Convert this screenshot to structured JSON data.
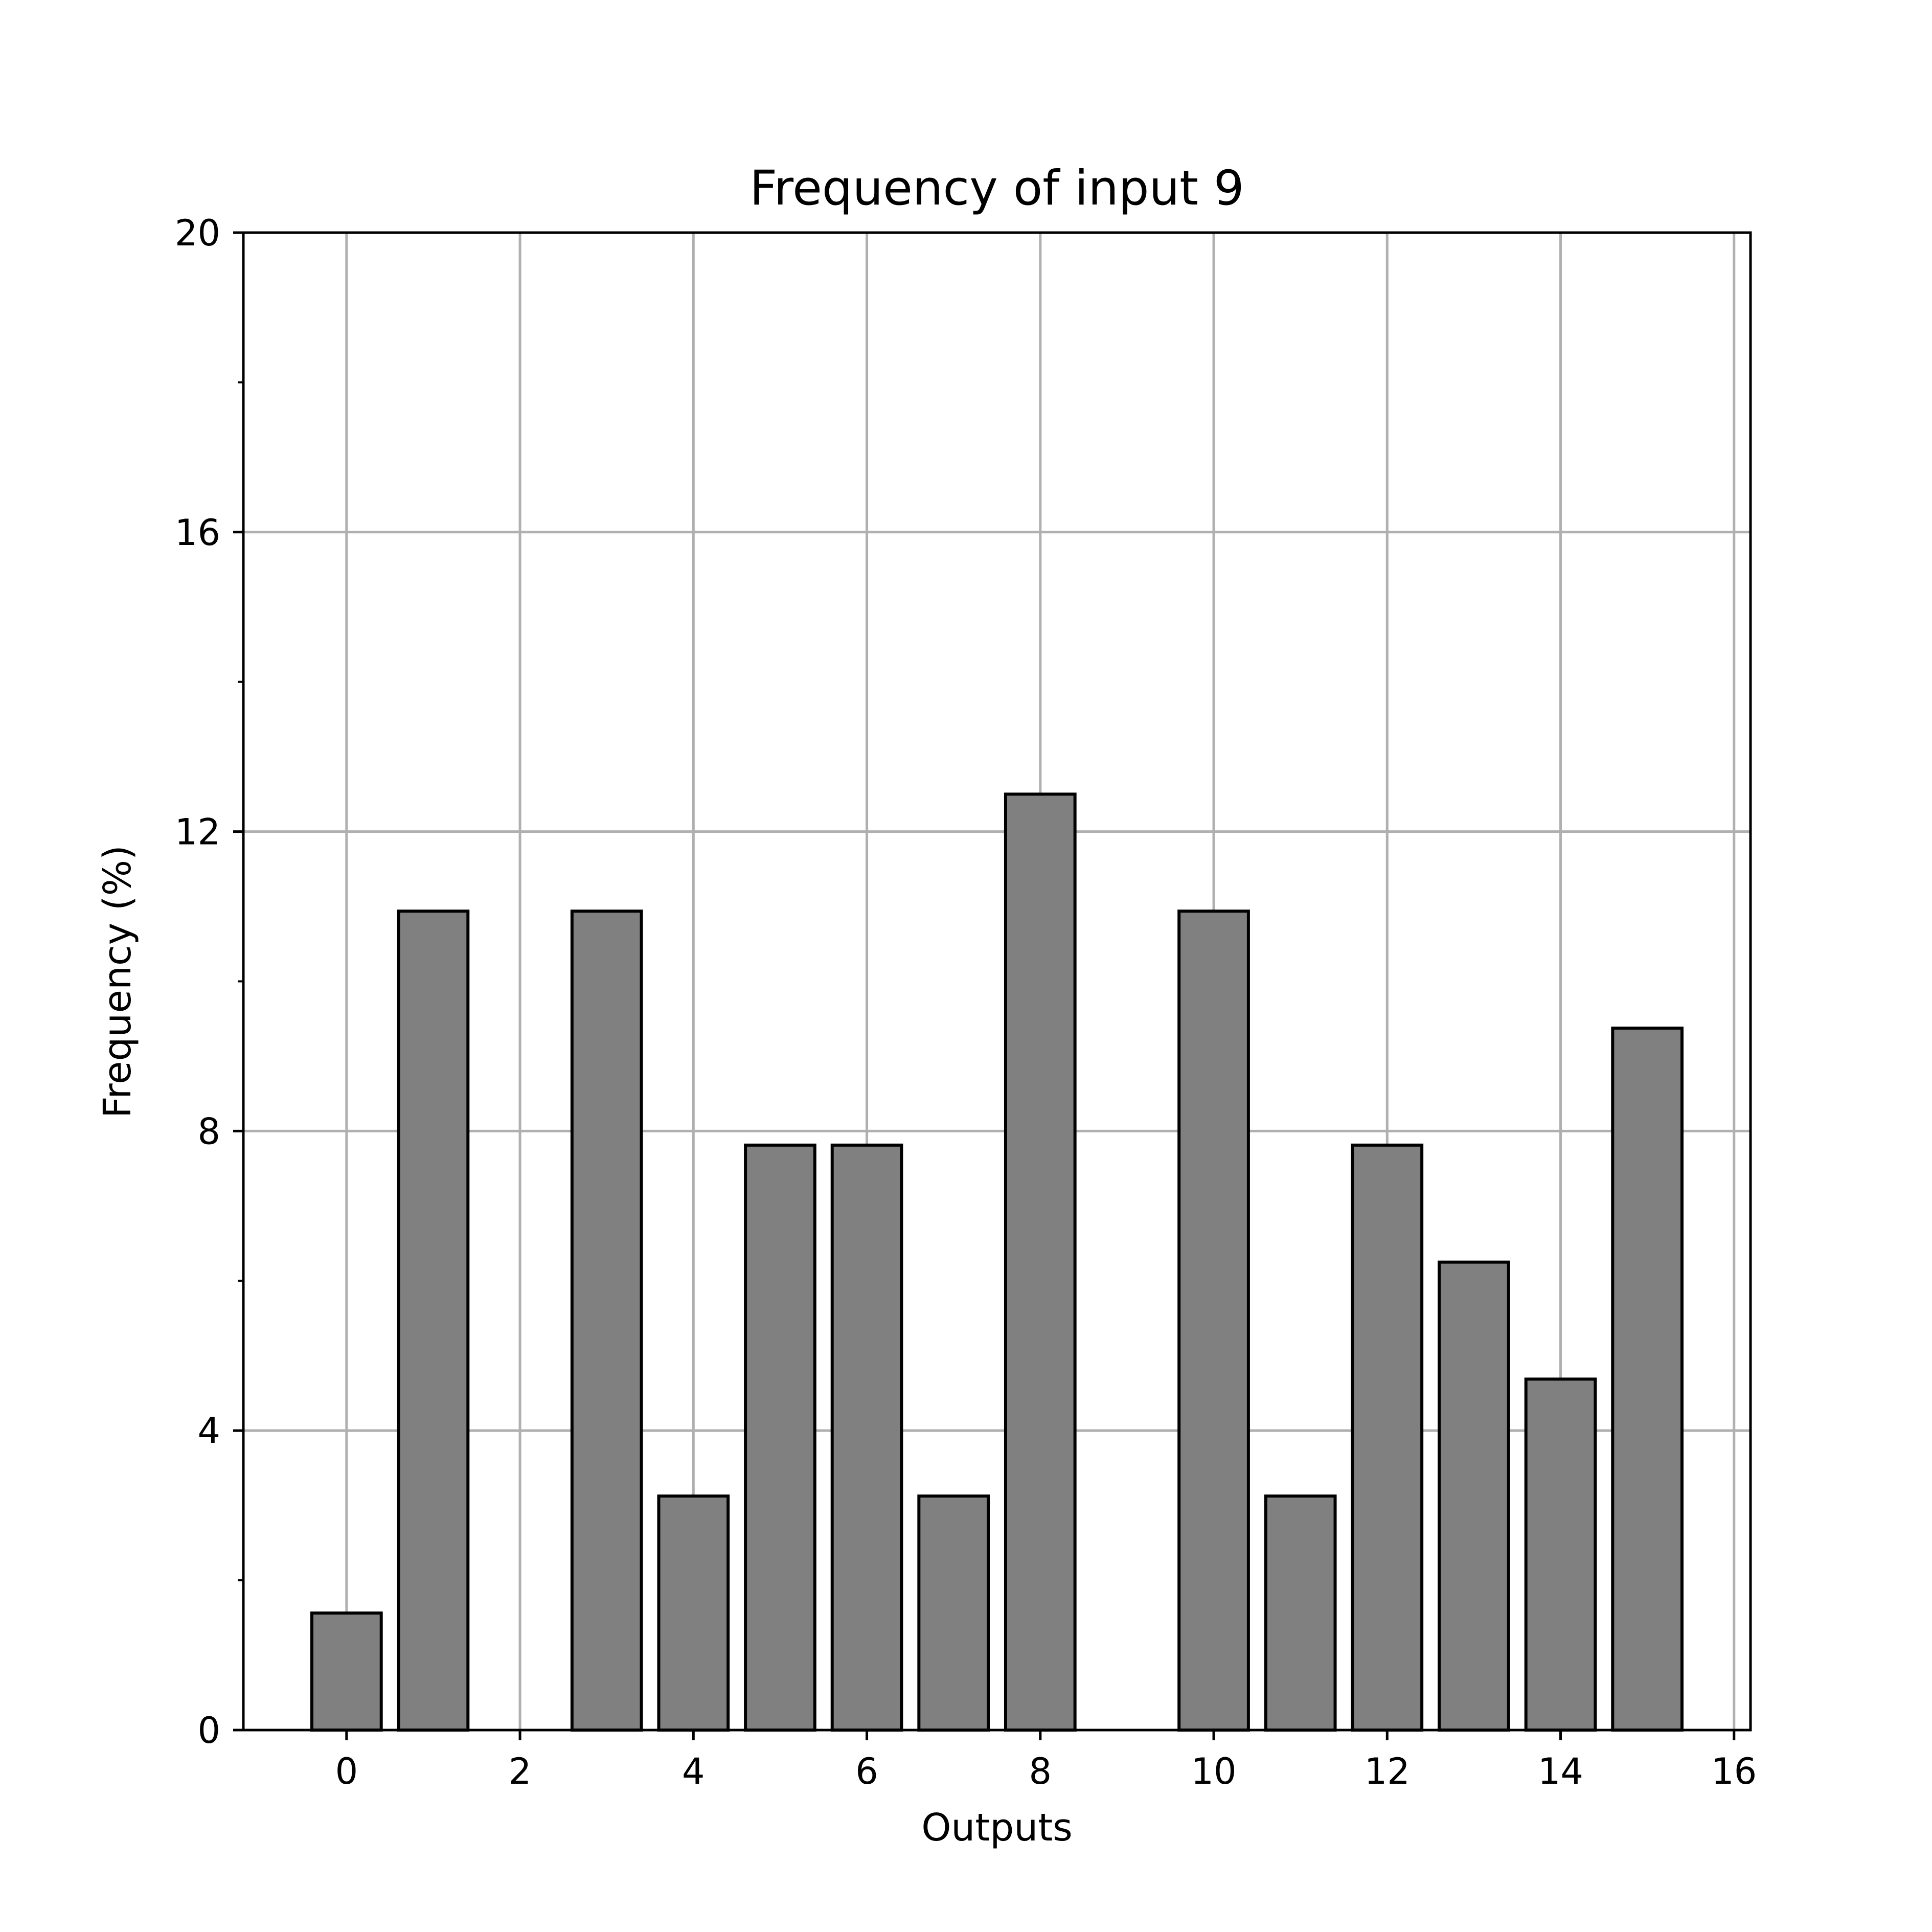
{
  "chart_data": {
    "type": "bar",
    "title": "Frequency of input 9",
    "xlabel": "Outputs",
    "ylabel": "Frequency (%)",
    "x": [
      0,
      1,
      2,
      3,
      4,
      5,
      6,
      7,
      8,
      9,
      10,
      11,
      12,
      13,
      14,
      15
    ],
    "values": [
      1.5625,
      10.9375,
      0,
      10.9375,
      3.125,
      7.8125,
      7.8125,
      3.125,
      12.5,
      0,
      10.9375,
      3.125,
      7.8125,
      6.25,
      4.6875,
      9.375
    ],
    "xlim": [
      -1.19,
      16.19
    ],
    "ylim": [
      0,
      20
    ],
    "xticks": [
      0,
      2,
      4,
      6,
      8,
      10,
      12,
      14,
      16
    ],
    "yticks": [
      0,
      4,
      8,
      12,
      16,
      20
    ],
    "yminor_ticks": [
      2,
      6,
      10,
      14,
      18
    ],
    "grid": true,
    "bar_color": "#808080",
    "edge_color": "#000000",
    "grid_color": "#b0b0b0"
  }
}
